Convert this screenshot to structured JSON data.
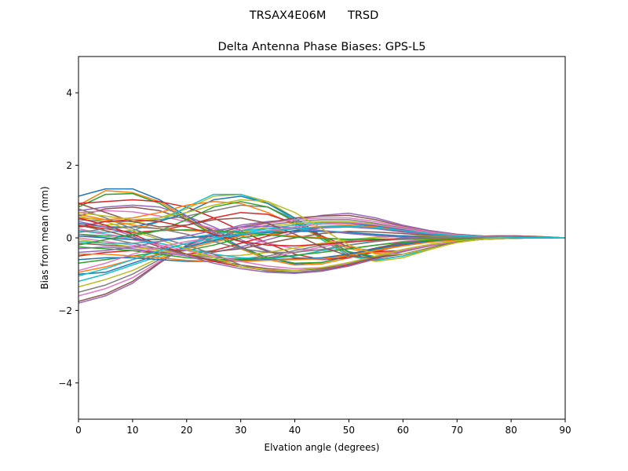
{
  "chart_data": {
    "type": "line",
    "suptitle": "TRSAX4E06M      TRSD",
    "title": "Delta Antenna Phase Biases: GPS-L5",
    "xlabel": "Elvation angle (degrees)",
    "ylabel": "Bias from mean (mm)",
    "xlim": [
      0,
      90
    ],
    "ylim": [
      -5,
      5
    ],
    "xticks": [
      "0",
      "10",
      "20",
      "30",
      "40",
      "50",
      "60",
      "70",
      "80",
      "90"
    ],
    "yticks": [
      "−4",
      "−2",
      "0",
      "2",
      "4"
    ],
    "grid": false,
    "legend": "none",
    "x": [
      0,
      5,
      10,
      15,
      20,
      25,
      30,
      35,
      40,
      45,
      50,
      55,
      60,
      65,
      70,
      75,
      80,
      85,
      90
    ],
    "color_cycle": [
      "#1f77b4",
      "#ff7f0e",
      "#2ca02c",
      "#d62728",
      "#9467bd",
      "#8c564b",
      "#e377c2",
      "#7f7f7f",
      "#bcbd22",
      "#17becf"
    ],
    "series": [
      {
        "values": [
          1.15,
          1.35,
          1.35,
          1.05,
          0.6,
          0.15,
          -0.25,
          -0.55,
          -0.72,
          -0.68,
          -0.5,
          -0.3,
          -0.15,
          -0.05,
          0.02,
          0.05,
          0.06,
          0.04,
          0.0
        ]
      },
      {
        "values": [
          0.9,
          1.3,
          1.25,
          1.0,
          0.55,
          0.1,
          -0.3,
          -0.6,
          -0.75,
          -0.72,
          -0.55,
          -0.35,
          -0.18,
          -0.06,
          0.02,
          0.05,
          0.06,
          0.04,
          0.0
        ]
      },
      {
        "values": [
          0.85,
          1.2,
          1.22,
          0.95,
          0.5,
          0.08,
          -0.28,
          -0.55,
          -0.7,
          -0.68,
          -0.5,
          -0.32,
          -0.16,
          -0.05,
          0.02,
          0.05,
          0.05,
          0.03,
          0.0
        ]
      },
      {
        "values": [
          0.95,
          1.0,
          1.05,
          1.0,
          0.85,
          0.55,
          0.2,
          -0.15,
          -0.45,
          -0.6,
          -0.55,
          -0.38,
          -0.2,
          -0.08,
          0.0,
          0.04,
          0.05,
          0.03,
          0.0
        ]
      },
      {
        "values": [
          0.75,
          0.85,
          0.9,
          0.85,
          0.6,
          0.3,
          -0.05,
          -0.35,
          -0.55,
          -0.6,
          -0.48,
          -0.3,
          -0.15,
          -0.05,
          0.02,
          0.04,
          0.05,
          0.03,
          0.0
        ]
      },
      {
        "values": [
          0.6,
          0.8,
          0.85,
          0.75,
          0.5,
          0.2,
          -0.1,
          -0.38,
          -0.55,
          -0.58,
          -0.45,
          -0.28,
          -0.13,
          -0.04,
          0.02,
          0.04,
          0.04,
          0.02,
          0.0
        ]
      },
      {
        "values": [
          0.7,
          0.75,
          0.72,
          0.6,
          0.45,
          0.25,
          0.05,
          -0.15,
          -0.3,
          -0.35,
          -0.3,
          -0.2,
          -0.1,
          -0.03,
          0.01,
          0.03,
          0.03,
          0.02,
          0.0
        ]
      },
      {
        "values": [
          0.5,
          0.45,
          0.45,
          0.5,
          0.6,
          0.75,
          0.9,
          0.85,
          0.5,
          0.0,
          -0.45,
          -0.6,
          -0.5,
          -0.3,
          -0.12,
          -0.03,
          0.01,
          0.02,
          0.0
        ]
      },
      {
        "values": [
          0.3,
          0.35,
          0.4,
          0.55,
          0.8,
          1.15,
          1.2,
          1.0,
          0.55,
          0.0,
          -0.5,
          -0.65,
          -0.55,
          -0.32,
          -0.12,
          -0.02,
          0.02,
          0.02,
          0.0
        ]
      },
      {
        "values": [
          0.2,
          0.15,
          0.2,
          0.45,
          0.85,
          1.2,
          1.2,
          0.95,
          0.5,
          -0.05,
          -0.5,
          -0.62,
          -0.5,
          -0.3,
          -0.12,
          -0.02,
          0.02,
          0.02,
          0.0
        ]
      },
      {
        "values": [
          0.4,
          0.3,
          0.3,
          0.45,
          0.7,
          1.05,
          1.15,
          0.95,
          0.55,
          0.05,
          -0.4,
          -0.55,
          -0.45,
          -0.28,
          -0.1,
          -0.02,
          0.02,
          0.02,
          0.0
        ]
      },
      {
        "values": [
          0.55,
          0.5,
          0.55,
          0.7,
          0.9,
          1.0,
          0.95,
          0.7,
          0.35,
          0.0,
          -0.3,
          -0.42,
          -0.38,
          -0.22,
          -0.08,
          0.0,
          0.03,
          0.02,
          0.0
        ]
      },
      {
        "values": [
          0.1,
          0.05,
          0.05,
          0.2,
          0.5,
          0.85,
          1.0,
          0.85,
          0.45,
          0.0,
          -0.38,
          -0.52,
          -0.45,
          -0.28,
          -0.1,
          -0.02,
          0.02,
          0.02,
          0.0
        ]
      },
      {
        "values": [
          0.35,
          0.25,
          0.15,
          0.2,
          0.35,
          0.55,
          0.7,
          0.65,
          0.4,
          0.05,
          -0.25,
          -0.38,
          -0.35,
          -0.22,
          -0.08,
          0.0,
          0.03,
          0.02,
          0.0
        ]
      },
      {
        "values": [
          -1.8,
          -1.6,
          -1.25,
          -0.7,
          -0.2,
          0.15,
          0.35,
          0.45,
          0.5,
          0.62,
          0.68,
          0.55,
          0.35,
          0.2,
          0.1,
          0.05,
          0.03,
          0.01,
          0.0
        ]
      },
      {
        "values": [
          -1.75,
          -1.55,
          -1.2,
          -0.68,
          -0.22,
          0.1,
          0.3,
          0.42,
          0.55,
          0.6,
          0.62,
          0.5,
          0.32,
          0.18,
          0.09,
          0.05,
          0.03,
          0.01,
          0.0
        ]
      },
      {
        "values": [
          -1.6,
          -1.4,
          -1.1,
          -0.65,
          -0.25,
          0.05,
          0.25,
          0.4,
          0.5,
          0.55,
          0.55,
          0.45,
          0.3,
          0.17,
          0.08,
          0.04,
          0.02,
          0.01,
          0.0
        ]
      },
      {
        "values": [
          -1.5,
          -1.3,
          -1.0,
          -0.6,
          -0.3,
          0.0,
          0.2,
          0.35,
          0.45,
          0.5,
          0.5,
          0.4,
          0.27,
          0.15,
          0.07,
          0.03,
          0.02,
          0.01,
          0.0
        ]
      },
      {
        "values": [
          -1.35,
          -1.15,
          -0.9,
          -0.55,
          -0.28,
          -0.05,
          0.15,
          0.3,
          0.4,
          0.45,
          0.45,
          0.37,
          0.25,
          0.14,
          0.07,
          0.03,
          0.02,
          0.01,
          0.0
        ]
      },
      {
        "values": [
          -1.2,
          -1.0,
          -0.75,
          -0.5,
          -0.25,
          -0.05,
          0.12,
          0.25,
          0.35,
          0.42,
          0.42,
          0.34,
          0.23,
          0.13,
          0.06,
          0.03,
          0.02,
          0.01,
          0.0
        ]
      },
      {
        "values": [
          -1.0,
          -0.95,
          -0.7,
          -0.45,
          -0.25,
          -0.08,
          0.08,
          0.2,
          0.3,
          0.38,
          0.4,
          0.32,
          0.22,
          0.12,
          0.06,
          0.03,
          0.02,
          0.01,
          0.0
        ]
      },
      {
        "values": [
          -0.95,
          -0.8,
          -0.6,
          -0.45,
          -0.3,
          -0.12,
          0.05,
          0.15,
          0.25,
          0.32,
          0.35,
          0.3,
          0.2,
          0.11,
          0.05,
          0.03,
          0.02,
          0.01,
          0.0
        ]
      },
      {
        "values": [
          -0.7,
          -0.6,
          -0.5,
          -0.4,
          -0.35,
          -0.2,
          0.0,
          0.1,
          0.2,
          0.28,
          0.3,
          0.26,
          0.18,
          0.1,
          0.05,
          0.02,
          0.01,
          0.0,
          0.0
        ]
      },
      {
        "values": [
          -0.5,
          -0.4,
          -0.35,
          -0.4,
          -0.45,
          -0.35,
          -0.15,
          0.05,
          0.2,
          0.3,
          0.32,
          0.27,
          0.18,
          0.1,
          0.05,
          0.02,
          0.01,
          0.0,
          0.0
        ]
      },
      {
        "values": [
          -0.3,
          -0.25,
          -0.3,
          -0.4,
          -0.5,
          -0.4,
          -0.25,
          -0.05,
          0.15,
          0.28,
          0.3,
          0.25,
          0.16,
          0.09,
          0.04,
          0.02,
          0.01,
          0.0,
          0.0
        ]
      },
      {
        "values": [
          -0.15,
          -0.2,
          -0.25,
          -0.3,
          -0.35,
          -0.38,
          -0.3,
          -0.15,
          0.0,
          0.12,
          0.18,
          0.16,
          0.12,
          0.07,
          0.03,
          0.01,
          0.0,
          0.0,
          0.0
        ]
      },
      {
        "values": [
          0.0,
          -0.1,
          -0.2,
          -0.35,
          -0.5,
          -0.6,
          -0.62,
          -0.55,
          -0.4,
          -0.25,
          -0.1,
          0.0,
          0.05,
          0.05,
          0.03,
          0.02,
          0.01,
          0.0,
          0.0
        ]
      },
      {
        "values": [
          0.1,
          0.0,
          -0.15,
          -0.3,
          -0.45,
          -0.55,
          -0.58,
          -0.5,
          -0.35,
          -0.2,
          -0.08,
          0.02,
          0.06,
          0.05,
          0.03,
          0.02,
          0.01,
          0.0,
          0.0
        ]
      },
      {
        "values": [
          -0.05,
          -0.15,
          -0.25,
          -0.35,
          -0.45,
          -0.5,
          -0.48,
          -0.4,
          -0.28,
          -0.15,
          -0.05,
          0.02,
          0.05,
          0.04,
          0.03,
          0.02,
          0.01,
          0.0,
          0.0
        ]
      },
      {
        "values": [
          0.2,
          0.1,
          0.0,
          -0.15,
          -0.3,
          -0.45,
          -0.55,
          -0.58,
          -0.5,
          -0.35,
          -0.2,
          -0.08,
          0.0,
          0.03,
          0.03,
          0.02,
          0.01,
          0.0,
          0.0
        ]
      },
      {
        "values": [
          -0.6,
          -0.55,
          -0.55,
          -0.6,
          -0.65,
          -0.65,
          -0.62,
          -0.6,
          -0.58,
          -0.55,
          -0.45,
          -0.3,
          -0.18,
          -0.1,
          -0.05,
          -0.02,
          -0.01,
          0.0,
          0.0
        ]
      },
      {
        "values": [
          -0.45,
          -0.45,
          -0.5,
          -0.55,
          -0.62,
          -0.65,
          -0.65,
          -0.62,
          -0.6,
          -0.58,
          -0.48,
          -0.35,
          -0.22,
          -0.12,
          -0.06,
          -0.03,
          -0.01,
          0.0,
          0.0
        ]
      },
      {
        "values": [
          -0.25,
          -0.3,
          -0.35,
          -0.45,
          -0.55,
          -0.6,
          -0.6,
          -0.55,
          -0.48,
          -0.4,
          -0.3,
          -0.2,
          -0.12,
          -0.07,
          -0.04,
          -0.02,
          -0.01,
          0.0,
          0.0
        ]
      },
      {
        "values": [
          0.55,
          0.35,
          0.1,
          -0.2,
          -0.45,
          -0.65,
          -0.8,
          -0.9,
          -0.95,
          -0.9,
          -0.75,
          -0.55,
          -0.35,
          -0.2,
          -0.1,
          -0.04,
          -0.01,
          0.0,
          0.0
        ]
      },
      {
        "values": [
          0.45,
          0.3,
          0.05,
          -0.25,
          -0.5,
          -0.7,
          -0.85,
          -0.95,
          -0.98,
          -0.92,
          -0.78,
          -0.58,
          -0.38,
          -0.22,
          -0.1,
          -0.04,
          -0.01,
          0.0,
          0.0
        ]
      },
      {
        "values": [
          0.35,
          0.2,
          0.0,
          -0.25,
          -0.45,
          -0.62,
          -0.75,
          -0.85,
          -0.9,
          -0.85,
          -0.72,
          -0.55,
          -0.36,
          -0.2,
          -0.1,
          -0.04,
          -0.01,
          0.0,
          0.0
        ]
      },
      {
        "values": [
          0.25,
          0.1,
          -0.05,
          -0.2,
          -0.35,
          -0.5,
          -0.65,
          -0.78,
          -0.85,
          -0.82,
          -0.7,
          -0.52,
          -0.35,
          -0.2,
          -0.1,
          -0.04,
          -0.01,
          0.0,
          0.0
        ]
      },
      {
        "values": [
          0.8,
          0.55,
          0.25,
          0.0,
          -0.2,
          -0.45,
          -0.75,
          -0.92,
          -0.95,
          -0.88,
          -0.72,
          -0.52,
          -0.32,
          -0.18,
          -0.08,
          -0.03,
          -0.01,
          0.0,
          0.0
        ]
      },
      {
        "values": [
          0.6,
          0.45,
          0.2,
          -0.05,
          -0.3,
          -0.55,
          -0.8,
          -0.88,
          -0.9,
          -0.82,
          -0.68,
          -0.5,
          -0.32,
          -0.18,
          -0.08,
          -0.03,
          -0.01,
          0.0,
          0.0
        ]
      },
      {
        "values": [
          -0.1,
          -0.15,
          -0.15,
          -0.1,
          0.0,
          0.1,
          0.2,
          0.25,
          0.25,
          0.2,
          0.15,
          0.1,
          0.05,
          0.02,
          0.01,
          0.0,
          0.0,
          0.0,
          0.0
        ]
      },
      {
        "values": [
          0.05,
          0.0,
          -0.05,
          -0.05,
          0.0,
          0.05,
          0.1,
          0.15,
          0.18,
          0.18,
          0.14,
          0.09,
          0.05,
          0.02,
          0.01,
          0.0,
          0.0,
          0.0,
          0.0
        ]
      },
      {
        "values": [
          0.65,
          0.5,
          0.35,
          0.25,
          0.2,
          0.18,
          0.15,
          0.1,
          0.05,
          0.0,
          -0.05,
          -0.06,
          -0.05,
          -0.03,
          -0.01,
          0.0,
          0.0,
          0.0,
          0.0
        ]
      },
      {
        "values": [
          -0.2,
          -0.05,
          0.1,
          0.2,
          0.22,
          0.2,
          0.15,
          0.08,
          0.02,
          -0.02,
          -0.04,
          -0.04,
          -0.03,
          -0.02,
          -0.01,
          0.0,
          0.0,
          0.0,
          0.0
        ]
      },
      {
        "values": [
          0.3,
          0.45,
          0.5,
          0.45,
          0.3,
          0.1,
          -0.1,
          -0.2,
          -0.22,
          -0.18,
          -0.12,
          -0.06,
          -0.02,
          0.0,
          0.01,
          0.01,
          0.0,
          0.0,
          0.0
        ]
      },
      {
        "values": [
          -0.4,
          -0.35,
          -0.25,
          -0.1,
          0.05,
          0.2,
          0.3,
          0.32,
          0.28,
          0.2,
          0.12,
          0.06,
          0.02,
          0.0,
          0.0,
          0.0,
          0.0,
          0.0,
          0.0
        ]
      },
      {
        "values": [
          0.95,
          0.7,
          0.45,
          0.3,
          0.35,
          0.5,
          0.55,
          0.4,
          0.1,
          -0.25,
          -0.5,
          -0.55,
          -0.45,
          -0.28,
          -0.12,
          -0.03,
          0.01,
          0.01,
          0.0
        ]
      },
      {
        "values": [
          -0.9,
          -0.7,
          -0.45,
          -0.25,
          -0.1,
          0.0,
          0.1,
          0.2,
          0.3,
          0.38,
          0.42,
          0.36,
          0.25,
          0.14,
          0.07,
          0.03,
          0.02,
          0.01,
          0.0
        ]
      },
      {
        "values": [
          0.15,
          0.25,
          0.3,
          0.25,
          0.1,
          -0.1,
          -0.3,
          -0.4,
          -0.4,
          -0.32,
          -0.2,
          -0.1,
          -0.03,
          0.01,
          0.02,
          0.02,
          0.01,
          0.0,
          0.0
        ]
      },
      {
        "values": [
          0.7,
          0.6,
          0.5,
          0.55,
          0.7,
          0.9,
          1.05,
          1.0,
          0.7,
          0.25,
          -0.2,
          -0.45,
          -0.45,
          -0.3,
          -0.13,
          -0.03,
          0.01,
          0.01,
          0.0
        ]
      },
      {
        "values": [
          -1.05,
          -0.85,
          -0.6,
          -0.35,
          -0.15,
          0.0,
          0.1,
          0.18,
          0.25,
          0.3,
          0.32,
          0.28,
          0.2,
          0.12,
          0.06,
          0.03,
          0.02,
          0.01,
          0.0
        ]
      }
    ]
  }
}
